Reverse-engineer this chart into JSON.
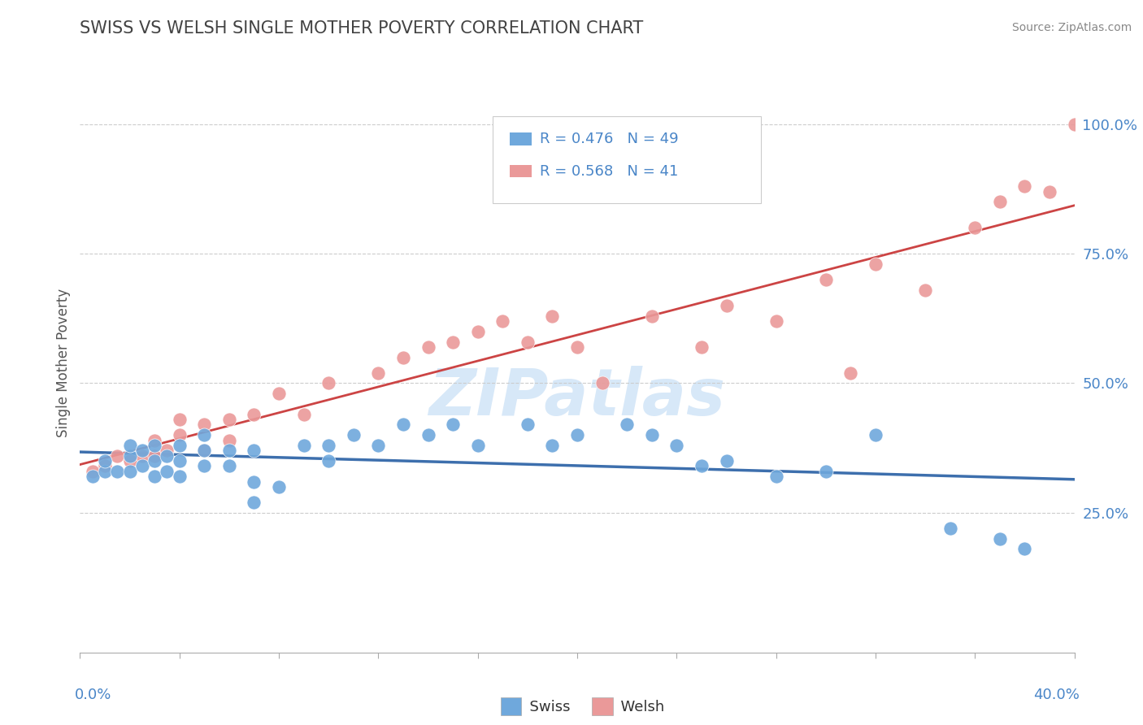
{
  "title": "SWISS VS WELSH SINGLE MOTHER POVERTY CORRELATION CHART",
  "source": "Source: ZipAtlas.com",
  "ylabel": "Single Mother Poverty",
  "yticks_right": [
    "25.0%",
    "50.0%",
    "75.0%",
    "100.0%"
  ],
  "ytick_values": [
    0.25,
    0.5,
    0.75,
    1.0
  ],
  "xlim": [
    0.0,
    0.4
  ],
  "ylim": [
    -0.02,
    1.1
  ],
  "swiss_R": 0.476,
  "swiss_N": 49,
  "welsh_R": 0.568,
  "welsh_N": 41,
  "swiss_color": "#6fa8dc",
  "welsh_color": "#ea9999",
  "swiss_line_color": "#3d6fad",
  "welsh_line_color": "#cc4444",
  "title_color": "#434343",
  "axis_label_color": "#4a86c8",
  "legend_text_color": "#4a86c8",
  "watermark_color": "#d0e4f7",
  "swiss_scatter_x": [
    0.005,
    0.01,
    0.01,
    0.015,
    0.02,
    0.02,
    0.02,
    0.025,
    0.025,
    0.03,
    0.03,
    0.03,
    0.035,
    0.035,
    0.04,
    0.04,
    0.04,
    0.05,
    0.05,
    0.05,
    0.06,
    0.06,
    0.07,
    0.07,
    0.07,
    0.08,
    0.09,
    0.1,
    0.1,
    0.11,
    0.12,
    0.13,
    0.14,
    0.15,
    0.16,
    0.18,
    0.19,
    0.2,
    0.22,
    0.23,
    0.24,
    0.25,
    0.26,
    0.28,
    0.3,
    0.32,
    0.35,
    0.37,
    0.38
  ],
  "swiss_scatter_y": [
    0.32,
    0.33,
    0.35,
    0.33,
    0.33,
    0.36,
    0.38,
    0.34,
    0.37,
    0.32,
    0.35,
    0.38,
    0.33,
    0.36,
    0.32,
    0.35,
    0.38,
    0.34,
    0.37,
    0.4,
    0.34,
    0.37,
    0.27,
    0.31,
    0.37,
    0.3,
    0.38,
    0.35,
    0.38,
    0.4,
    0.38,
    0.42,
    0.4,
    0.42,
    0.38,
    0.42,
    0.38,
    0.4,
    0.42,
    0.4,
    0.38,
    0.34,
    0.35,
    0.32,
    0.33,
    0.4,
    0.22,
    0.2,
    0.18
  ],
  "welsh_scatter_x": [
    0.005,
    0.01,
    0.015,
    0.02,
    0.025,
    0.03,
    0.03,
    0.035,
    0.04,
    0.04,
    0.05,
    0.05,
    0.06,
    0.06,
    0.07,
    0.08,
    0.09,
    0.1,
    0.12,
    0.13,
    0.14,
    0.15,
    0.16,
    0.17,
    0.18,
    0.19,
    0.2,
    0.21,
    0.23,
    0.25,
    0.26,
    0.28,
    0.3,
    0.31,
    0.32,
    0.34,
    0.36,
    0.37,
    0.38,
    0.39,
    0.4
  ],
  "welsh_scatter_y": [
    0.33,
    0.34,
    0.36,
    0.35,
    0.36,
    0.36,
    0.39,
    0.37,
    0.4,
    0.43,
    0.37,
    0.42,
    0.39,
    0.43,
    0.44,
    0.48,
    0.44,
    0.5,
    0.52,
    0.55,
    0.57,
    0.58,
    0.6,
    0.62,
    0.58,
    0.63,
    0.57,
    0.5,
    0.63,
    0.57,
    0.65,
    0.62,
    0.7,
    0.52,
    0.73,
    0.68,
    0.8,
    0.85,
    0.88,
    0.87,
    1.0
  ]
}
